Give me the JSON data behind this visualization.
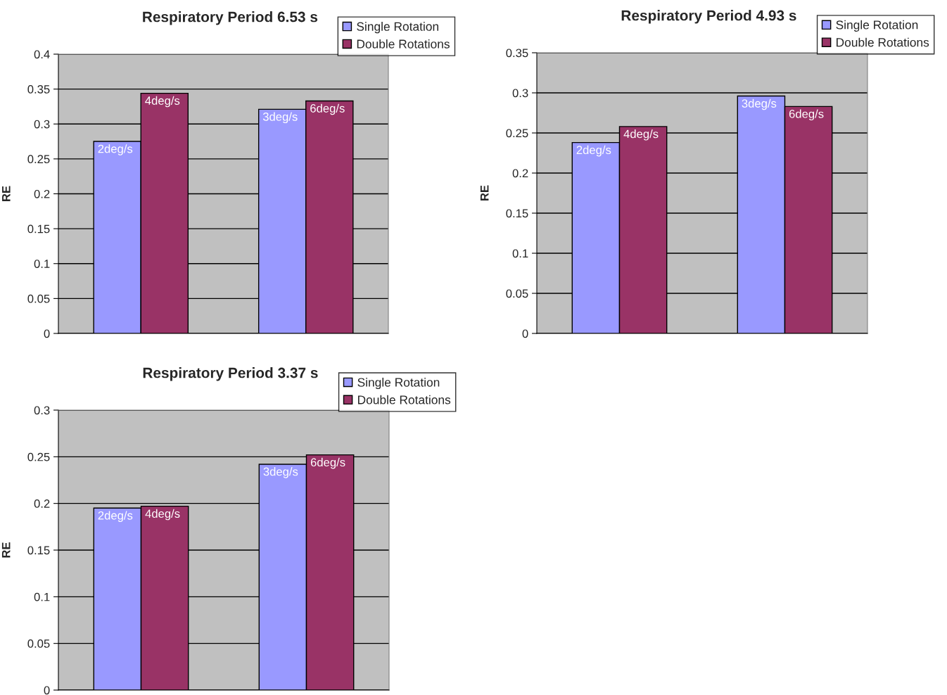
{
  "chart_data": [
    {
      "type": "bar",
      "title": "Respiratory Period 6.53 s",
      "ylabel": "RE",
      "categories": [
        null,
        null
      ],
      "ylim": [
        0,
        0.4
      ],
      "yticks": [
        0,
        0.05,
        0.1,
        0.15,
        0.2,
        0.25,
        0.3,
        0.35,
        0.4
      ],
      "grid": "y",
      "legend": "top right",
      "tick_labels": "y",
      "series": [
        {
          "name": "Single Rotation",
          "color": "#9999ff",
          "values": [
            0.275,
            0.321
          ]
        },
        {
          "name": "Double Rotations",
          "color": "#993366",
          "values": [
            0.344,
            0.333
          ]
        }
      ],
      "annotations": [
        {
          "text": "2deg/s",
          "y": 0.275
        },
        {
          "text": "3deg/s",
          "y": 0.321
        },
        {
          "text": "4deg/s",
          "y": 0.344
        },
        {
          "text": "6deg/s",
          "y": 0.333
        }
      ]
    },
    {
      "type": "bar",
      "title": "Respiratory Period 4.93 s",
      "ylabel": "RE",
      "categories": [
        null,
        null
      ],
      "ylim": [
        0,
        0.35
      ],
      "yticks": [
        0,
        0.05,
        0.1,
        0.15,
        0.2,
        0.25,
        0.3,
        0.35
      ],
      "grid": "y",
      "legend": "top right",
      "tick_labels": "y",
      "series": [
        {
          "name": "Single Rotation",
          "color": "#9999ff",
          "values": [
            0.238,
            0.296
          ]
        },
        {
          "name": "Double Rotations",
          "color": "#993366",
          "values": [
            0.258,
            0.283
          ]
        }
      ],
      "annotations": [
        {
          "text": "2deg/s",
          "y": 0.238
        },
        {
          "text": "3deg/s",
          "y": 0.296
        },
        {
          "text": "4deg/s",
          "y": 0.258
        },
        {
          "text": "6deg/s",
          "y": 0.283
        }
      ]
    },
    {
      "type": "bar",
      "title": "Respiratory Period 3.37 s",
      "ylabel": "RE",
      "categories": [
        null,
        null
      ],
      "ylim": [
        0,
        0.3
      ],
      "yticks": [
        0,
        0.05,
        0.1,
        0.15,
        0.2,
        0.25,
        0.3
      ],
      "grid": "y",
      "legend": "top right",
      "tick_labels": "y",
      "series": [
        {
          "name": "Single Rotation",
          "color": "#9999ff",
          "values": [
            0.195,
            0.242
          ]
        },
        {
          "name": "Double Rotations",
          "color": "#993366",
          "values": [
            0.197,
            0.252
          ]
        }
      ],
      "annotations": [
        {
          "text": "2deg/s",
          "y": 0.195
        },
        {
          "text": "3deg/s",
          "y": 0.242
        },
        {
          "text": "4deg/s",
          "y": 0.197
        },
        {
          "text": "6deg/s",
          "y": 0.252
        }
      ]
    }
  ]
}
